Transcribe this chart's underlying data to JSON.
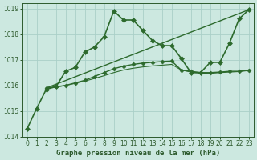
{
  "title": "Graphe pression niveau de la mer (hPa)",
  "series": [
    {
      "name": "line1_volatile",
      "x": [
        0,
        1,
        2,
        3,
        4,
        5,
        6,
        7,
        8,
        9,
        10,
        11,
        12,
        13,
        14,
        15,
        16,
        17,
        18,
        19,
        20,
        21,
        22,
        23
      ],
      "y": [
        1014.3,
        1015.1,
        1015.85,
        1015.95,
        1016.55,
        1016.7,
        1017.3,
        1017.5,
        1017.9,
        1018.9,
        1018.55,
        1018.55,
        1018.15,
        1017.75,
        1017.55,
        1017.55,
        1017.05,
        1016.5,
        1016.5,
        1016.9,
        1016.9,
        1017.65,
        1018.6,
        1018.95
      ],
      "color": "#2d6a2d",
      "lw": 1.2,
      "marker": "D",
      "ms": 3.0
    },
    {
      "name": "line2_diagonal",
      "x": [
        2,
        23
      ],
      "y": [
        1015.9,
        1018.95
      ],
      "color": "#2d6a2d",
      "lw": 1.0,
      "marker": null,
      "ms": 0
    },
    {
      "name": "line3_flat_rise",
      "x": [
        2,
        3,
        4,
        5,
        6,
        7,
        8,
        9,
        10,
        11,
        12,
        13,
        14,
        15,
        16,
        17,
        18,
        19,
        20,
        21,
        22,
        23
      ],
      "y": [
        1015.9,
        1015.95,
        1016.0,
        1016.1,
        1016.2,
        1016.35,
        1016.5,
        1016.65,
        1016.75,
        1016.82,
        1016.87,
        1016.9,
        1016.93,
        1016.95,
        1016.6,
        1016.55,
        1016.5,
        1016.5,
        1016.52,
        1016.55,
        1016.55,
        1016.6
      ],
      "color": "#2d6a2d",
      "lw": 1.0,
      "marker": "D",
      "ms": 2.5
    },
    {
      "name": "line4_gradual",
      "x": [
        2,
        3,
        4,
        5,
        6,
        7,
        8,
        9,
        10,
        11,
        12,
        13,
        14,
        15,
        16,
        17,
        18,
        19,
        20,
        21,
        22,
        23
      ],
      "y": [
        1015.9,
        1015.93,
        1016.0,
        1016.08,
        1016.17,
        1016.27,
        1016.38,
        1016.5,
        1016.6,
        1016.67,
        1016.72,
        1016.76,
        1016.79,
        1016.82,
        1016.6,
        1016.52,
        1016.48,
        1016.47,
        1016.5,
        1016.52,
        1016.54,
        1016.58
      ],
      "color": "#2d6a2d",
      "lw": 0.8,
      "marker": null,
      "ms": 0
    }
  ],
  "ylim": [
    1014.0,
    1019.2
  ],
  "yticks": [
    1014,
    1015,
    1016,
    1017,
    1018,
    1019
  ],
  "xticks": [
    0,
    1,
    2,
    3,
    4,
    5,
    6,
    7,
    8,
    9,
    10,
    11,
    12,
    13,
    14,
    15,
    16,
    17,
    18,
    19,
    20,
    21,
    22,
    23
  ],
  "bg_color": "#cce8e0",
  "grid_color": "#aacfc8",
  "text_color": "#2d5a2d",
  "title_fontsize": 6.5,
  "tick_fontsize": 5.5
}
